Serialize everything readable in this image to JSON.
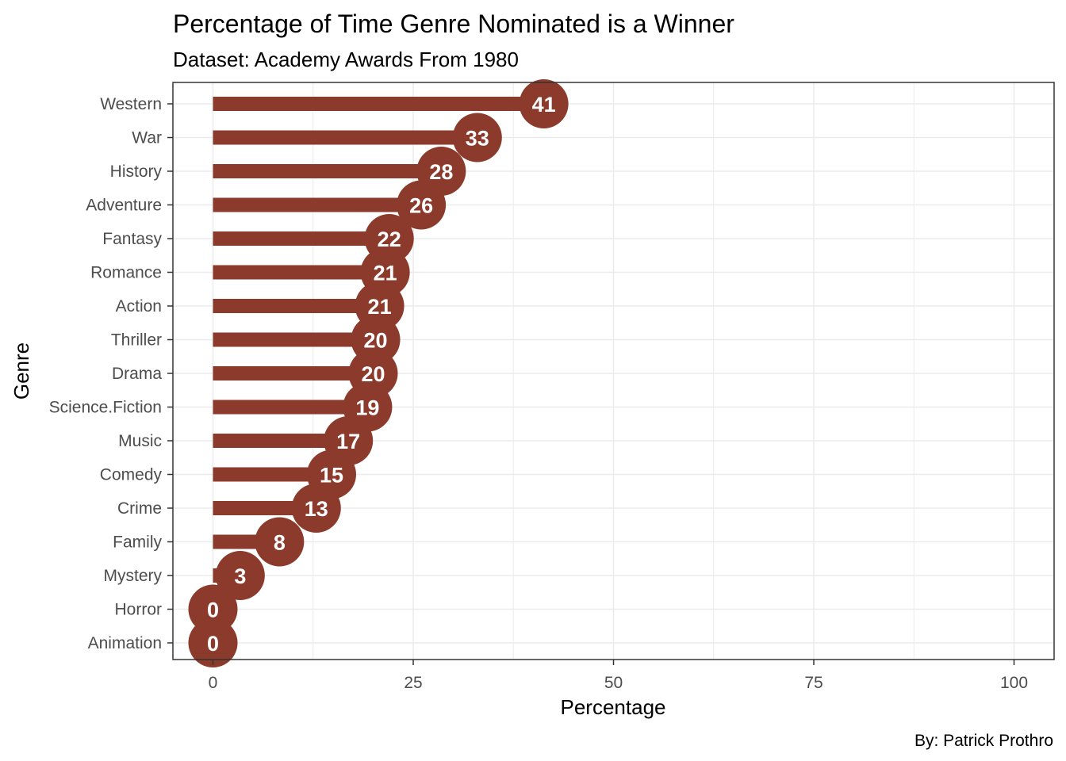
{
  "chart_data": {
    "type": "bar",
    "title": "Percentage of Time Genre Nominated is a Winner",
    "subtitle": "Dataset: Academy Awards From 1980",
    "xlabel": "Percentage",
    "ylabel": "Genre",
    "caption": "By: Patrick Prothro",
    "categories": [
      "Western",
      "War",
      "History",
      "Adventure",
      "Fantasy",
      "Romance",
      "Action",
      "Thriller",
      "Drama",
      "Science.Fiction",
      "Music",
      "Comedy",
      "Crime",
      "Family",
      "Mystery",
      "Horror",
      "Animation"
    ],
    "values": [
      41.3,
      33,
      28.5,
      26,
      22,
      21.5,
      20.8,
      20.3,
      20,
      19.3,
      16.9,
      14.8,
      12.9,
      8.3,
      3.4,
      0,
      0
    ],
    "labels": [
      "41",
      "33",
      "28",
      "26",
      "22",
      "21",
      "21",
      "20",
      "20",
      "19",
      "17",
      "15",
      "13",
      "8",
      "3",
      "0",
      "0"
    ],
    "xlim": [
      -5,
      105
    ],
    "xticks": [
      0,
      25,
      50,
      75,
      100
    ],
    "xtick_labels": [
      "0",
      "25",
      "50",
      "75",
      "100"
    ],
    "orientation": "horizontal",
    "style": "lollipop",
    "grid": true,
    "color": "#8B3A2B"
  }
}
